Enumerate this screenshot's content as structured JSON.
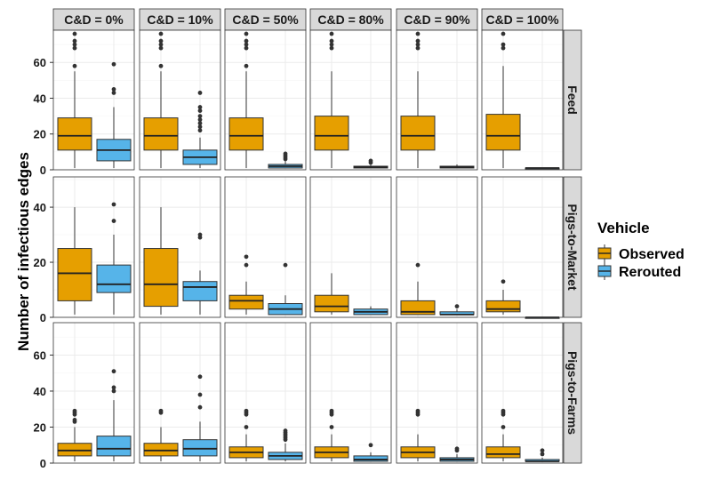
{
  "chart_data": {
    "type": "boxplot",
    "ylabel": "Number of infectious edges",
    "columns": [
      "C&D = 0%",
      "C&D = 10%",
      "C&D = 50%",
      "C&D = 80%",
      "C&D = 90%",
      "C&D = 100%"
    ],
    "rows": [
      "Feed",
      "Pigs-to-Market",
      "Pigs-to-Farms"
    ],
    "row_ylims": [
      [
        0,
        78
      ],
      [
        0,
        51
      ],
      [
        0,
        78
      ]
    ],
    "yticks": [
      [
        0,
        20,
        40,
        60
      ],
      [
        0,
        20,
        40
      ],
      [
        0,
        20,
        40,
        60
      ]
    ],
    "legend": {
      "title": "Vehicle",
      "position": "right",
      "items": [
        {
          "label": "Observed",
          "color": "#E69F00"
        },
        {
          "label": "Rerouted",
          "color": "#56B4E9"
        }
      ]
    },
    "grid": true,
    "panels": [
      [
        [
          {
            "series": "Observed",
            "min": 1,
            "q1": 11,
            "median": 19,
            "q3": 29,
            "max": 55,
            "outliers": [
              58,
              68,
              70,
              72,
              76
            ]
          },
          {
            "series": "Rerouted",
            "min": 1,
            "q1": 5,
            "median": 11,
            "q3": 17,
            "max": 35,
            "outliers": [
              43,
              45,
              59
            ]
          }
        ],
        [
          {
            "series": "Observed",
            "min": 1,
            "q1": 11,
            "median": 19,
            "q3": 29,
            "max": 55,
            "outliers": [
              58,
              68,
              70,
              72,
              76
            ]
          },
          {
            "series": "Rerouted",
            "min": 1,
            "q1": 3,
            "median": 7,
            "q3": 11,
            "max": 18,
            "outliers": [
              22,
              24,
              26,
              28,
              30,
              33,
              35,
              43
            ]
          }
        ],
        [
          {
            "series": "Observed",
            "min": 1,
            "q1": 11,
            "median": 19,
            "q3": 29,
            "max": 55,
            "outliers": [
              58,
              68,
              70,
              72,
              76
            ]
          },
          {
            "series": "Rerouted",
            "min": 1,
            "q1": 1,
            "median": 2,
            "q3": 3,
            "max": 5,
            "outliers": [
              6,
              7,
              8,
              9
            ]
          }
        ],
        [
          {
            "series": "Observed",
            "min": 1,
            "q1": 11,
            "median": 19,
            "q3": 30,
            "max": 55,
            "outliers": [
              68,
              70,
              72,
              76
            ]
          },
          {
            "series": "Rerouted",
            "min": 1,
            "q1": 1,
            "median": 1.5,
            "q3": 2,
            "max": 3,
            "outliers": [
              4,
              5
            ]
          }
        ],
        [
          {
            "series": "Observed",
            "min": 1,
            "q1": 11,
            "median": 19,
            "q3": 30,
            "max": 55,
            "outliers": [
              68,
              70,
              72,
              76
            ]
          },
          {
            "series": "Rerouted",
            "min": 1,
            "q1": 1,
            "median": 1.5,
            "q3": 2,
            "max": 3,
            "outliers": []
          }
        ],
        [
          {
            "series": "Observed",
            "min": 1,
            "q1": 11,
            "median": 19,
            "q3": 31,
            "max": 58,
            "outliers": [
              68,
              70,
              76
            ]
          },
          {
            "series": "Rerouted",
            "min": 1,
            "q1": 1,
            "median": 1,
            "q3": 1,
            "max": 1,
            "outliers": []
          }
        ]
      ],
      [
        [
          {
            "series": "Observed",
            "min": 1,
            "q1": 6,
            "median": 16,
            "q3": 25,
            "max": 40,
            "outliers": []
          },
          {
            "series": "Rerouted",
            "min": 1,
            "q1": 9,
            "median": 12,
            "q3": 19,
            "max": 30,
            "outliers": [
              35,
              41
            ]
          }
        ],
        [
          {
            "series": "Observed",
            "min": 1,
            "q1": 4,
            "median": 12,
            "q3": 25,
            "max": 40,
            "outliers": []
          },
          {
            "series": "Rerouted",
            "min": 1,
            "q1": 6,
            "median": 11,
            "q3": 13,
            "max": 17,
            "outliers": [
              29,
              30
            ]
          }
        ],
        [
          {
            "series": "Observed",
            "min": 1,
            "q1": 3,
            "median": 6,
            "q3": 8,
            "max": 13,
            "outliers": [
              19,
              22
            ]
          },
          {
            "series": "Rerouted",
            "min": 1,
            "q1": 1,
            "median": 3,
            "q3": 5,
            "max": 8,
            "outliers": [
              19
            ]
          }
        ],
        [
          {
            "series": "Observed",
            "min": 1,
            "q1": 2,
            "median": 4,
            "q3": 8,
            "max": 16,
            "outliers": []
          },
          {
            "series": "Rerouted",
            "min": 1,
            "q1": 1,
            "median": 2,
            "q3": 3,
            "max": 4,
            "outliers": []
          }
        ],
        [
          {
            "series": "Observed",
            "min": 1,
            "q1": 1,
            "median": 2,
            "q3": 6,
            "max": 13,
            "outliers": [
              19
            ]
          },
          {
            "series": "Rerouted",
            "min": 1,
            "q1": 1,
            "median": 1,
            "q3": 2,
            "max": 3,
            "outliers": [
              4
            ]
          }
        ],
        [
          {
            "series": "Observed",
            "min": 1,
            "q1": 2,
            "median": 3,
            "q3": 6,
            "max": 10,
            "outliers": [
              13
            ]
          },
          {
            "series": "Rerouted",
            "min": 0,
            "q1": 0,
            "median": 0,
            "q3": 0,
            "max": 0,
            "outliers": []
          }
        ]
      ],
      [
        [
          {
            "series": "Observed",
            "min": 1,
            "q1": 4,
            "median": 7,
            "q3": 11,
            "max": 20,
            "outliers": [
              23,
              24,
              27,
              28,
              29
            ]
          },
          {
            "series": "Rerouted",
            "min": 1,
            "q1": 4,
            "median": 8,
            "q3": 15,
            "max": 35,
            "outliers": [
              40,
              42,
              51
            ]
          }
        ],
        [
          {
            "series": "Observed",
            "min": 1,
            "q1": 4,
            "median": 7,
            "q3": 11,
            "max": 20,
            "outliers": [
              28,
              29
            ]
          },
          {
            "series": "Rerouted",
            "min": 1,
            "q1": 4,
            "median": 8,
            "q3": 13,
            "max": 23,
            "outliers": [
              31,
              38,
              48
            ]
          }
        ],
        [
          {
            "series": "Observed",
            "min": 1,
            "q1": 3,
            "median": 6,
            "q3": 9,
            "max": 16,
            "outliers": [
              20,
              27,
              28,
              29
            ]
          },
          {
            "series": "Rerouted",
            "min": 1,
            "q1": 2,
            "median": 4,
            "q3": 6,
            "max": 11,
            "outliers": [
              13,
              14,
              15,
              16,
              17,
              18
            ]
          }
        ],
        [
          {
            "series": "Observed",
            "min": 1,
            "q1": 3,
            "median": 6,
            "q3": 9,
            "max": 16,
            "outliers": [
              20,
              27,
              28,
              29
            ]
          },
          {
            "series": "Rerouted",
            "min": 1,
            "q1": 1,
            "median": 2,
            "q3": 4,
            "max": 6,
            "outliers": [
              10
            ]
          }
        ],
        [
          {
            "series": "Observed",
            "min": 1,
            "q1": 3,
            "median": 6,
            "q3": 9,
            "max": 16,
            "outliers": [
              27,
              28,
              29
            ]
          },
          {
            "series": "Rerouted",
            "min": 1,
            "q1": 1,
            "median": 2,
            "q3": 3,
            "max": 5,
            "outliers": [
              7,
              8
            ]
          }
        ],
        [
          {
            "series": "Observed",
            "min": 1,
            "q1": 3,
            "median": 5,
            "q3": 9,
            "max": 16,
            "outliers": [
              20,
              27,
              28,
              29
            ]
          },
          {
            "series": "Rerouted",
            "min": 1,
            "q1": 1,
            "median": 1,
            "q3": 2,
            "max": 3,
            "outliers": [
              5,
              7
            ]
          }
        ]
      ]
    ]
  }
}
